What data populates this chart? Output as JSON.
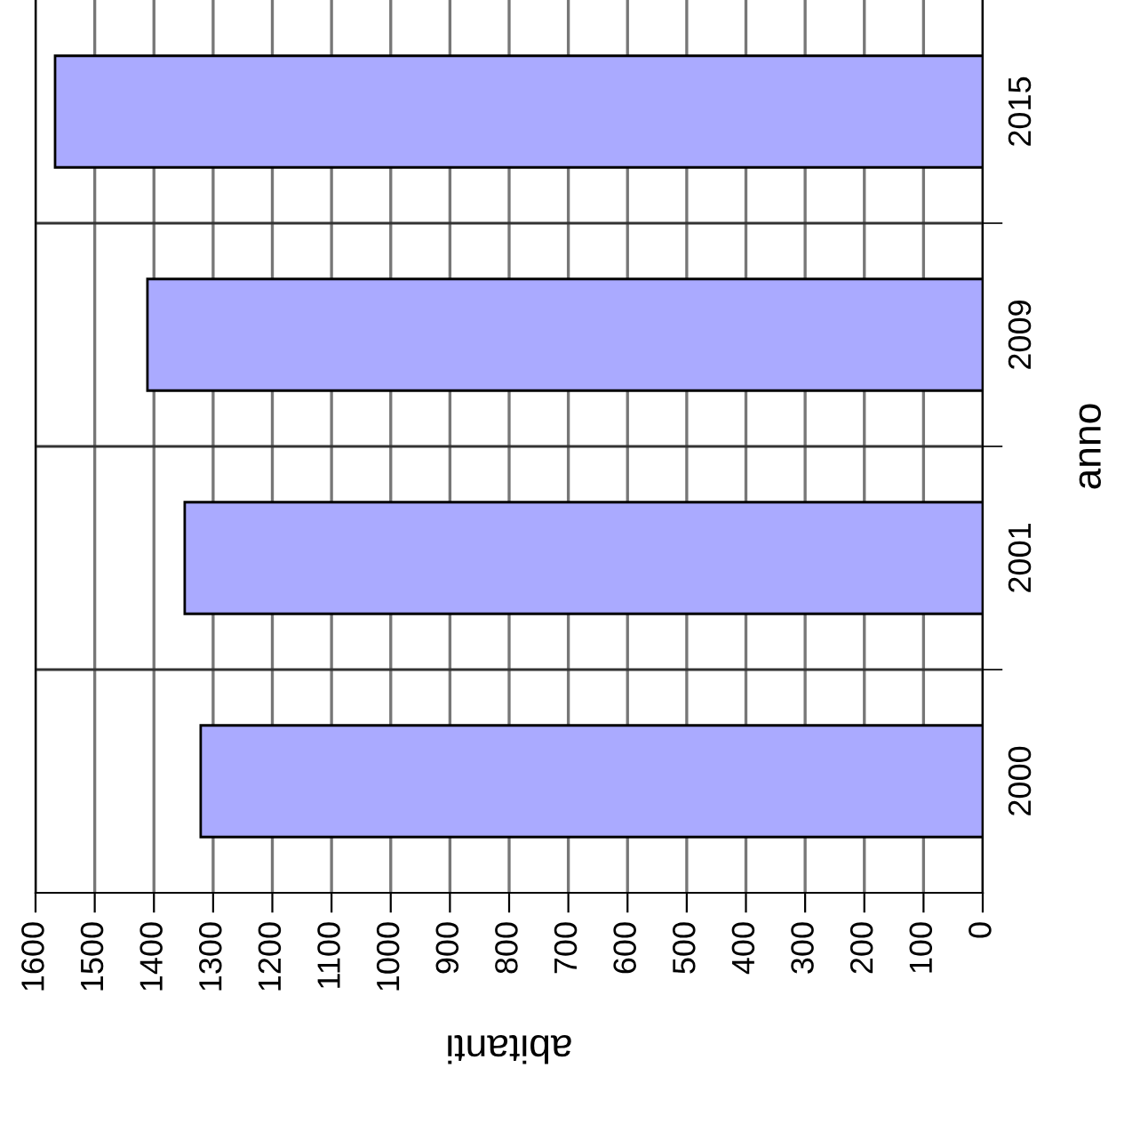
{
  "chart_data": {
    "type": "bar",
    "orientation": "horizontal",
    "xlabel": "abitanti",
    "ylabel": "anno",
    "categories": [
      "2015",
      "2009",
      "2001",
      "2000"
    ],
    "values": [
      1567,
      1411,
      1348,
      1321
    ],
    "color": "#aaaaff",
    "xlim": [
      1600,
      0
    ],
    "xticks": [
      1600,
      1500,
      1400,
      1300,
      1200,
      1100,
      1000,
      900,
      800,
      700,
      600,
      500,
      400,
      300,
      200,
      100,
      0
    ],
    "grid": true
  }
}
